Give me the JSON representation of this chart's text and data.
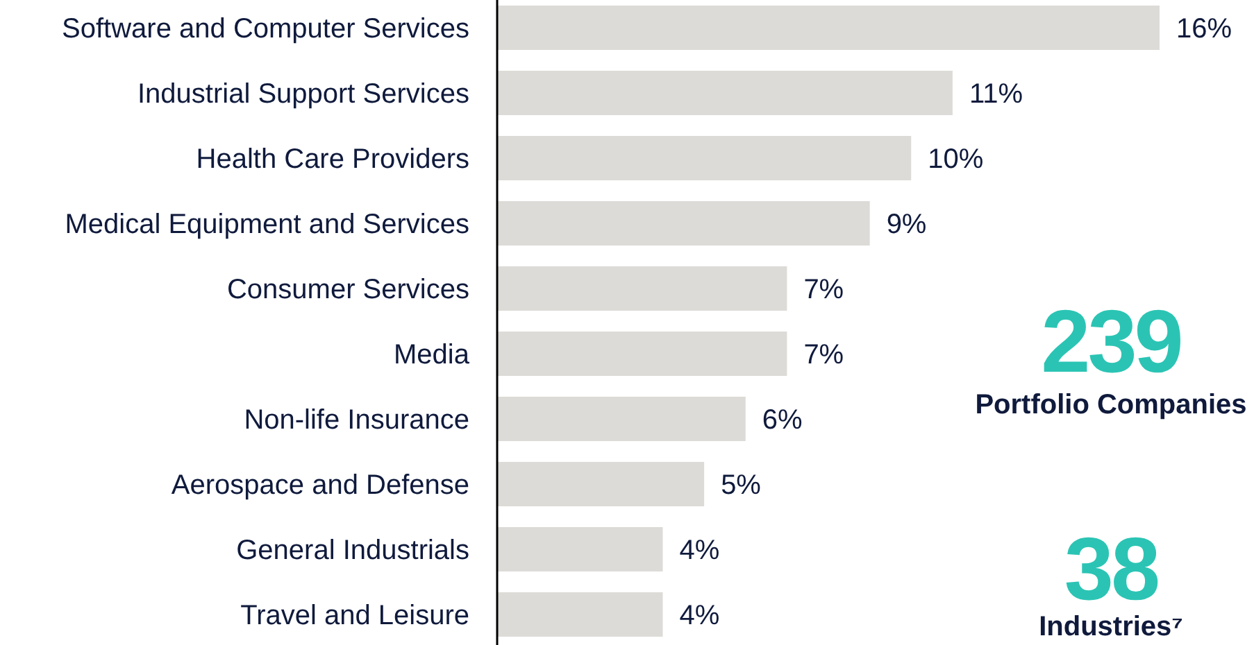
{
  "chart_data": {
    "type": "bar",
    "orientation": "horizontal",
    "categories": [
      "Software and Computer Services",
      "Industrial Support Services",
      "Health Care Providers",
      "Medical Equipment and Services",
      "Consumer Services",
      "Media",
      "Non-life Insurance",
      "Aerospace and Defense",
      "General Industrials",
      "Travel and Leisure"
    ],
    "values": [
      16,
      11,
      10,
      9,
      7,
      7,
      6,
      5,
      4,
      4
    ],
    "value_labels": [
      "16%",
      "11%",
      "10%",
      "9%",
      "7%",
      "7%",
      "6%",
      "5%",
      "4%",
      "4%"
    ],
    "color": "#dddbd7",
    "annotations": [
      "239",
      "Portfolio Companies",
      "38",
      "Industries⁷"
    ]
  }
}
